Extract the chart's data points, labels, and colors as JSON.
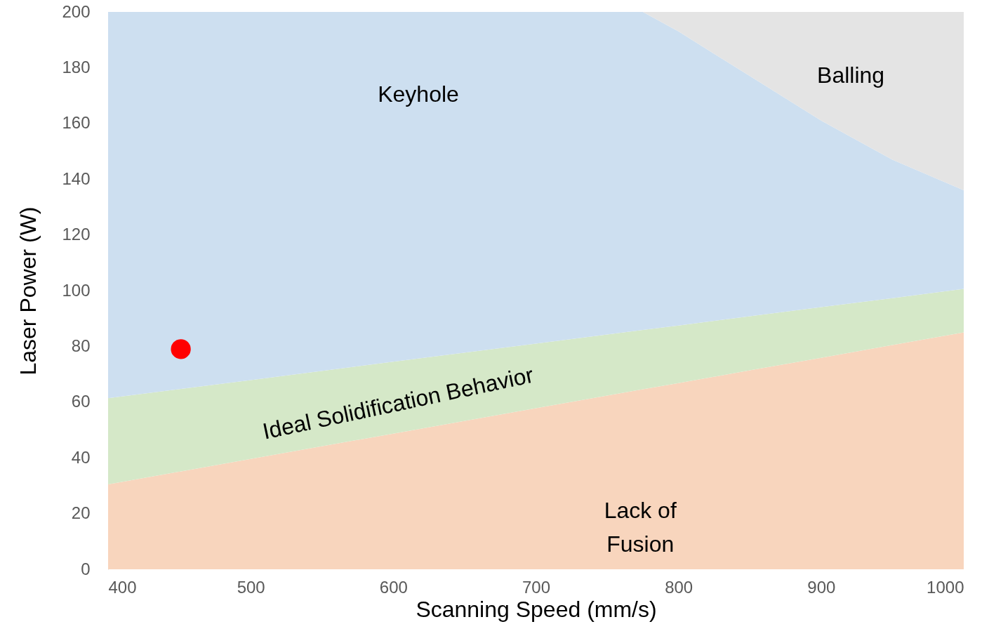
{
  "chart_data": {
    "type": "area",
    "stacked": true,
    "xlabel": "Scanning Speed (mm/s)",
    "ylabel": "Laser Power (W)",
    "x": [
      400,
      500,
      600,
      700,
      775,
      800,
      850,
      900,
      950,
      1000
    ],
    "series": [
      {
        "color": "#f8d5bd",
        "values": [
          30.5,
          39.6,
          48.7,
          57.8,
          64.6,
          66.8,
          71.4,
          75.9,
          80.5,
          85
        ]
      },
      {
        "color": "#d5e8c8",
        "values": [
          30.9,
          28.3,
          25.8,
          23.2,
          21.3,
          20.7,
          19.4,
          18.2,
          16.8,
          15.6
        ]
      },
      {
        "color": "#cddff0",
        "values": [
          138.6,
          132.1,
          125.5,
          119.0,
          114.1,
          105.5,
          86.2,
          66.9,
          49.7,
          35.4
        ]
      },
      {
        "color": "#e4e4e4",
        "values": [
          0,
          0,
          0,
          0,
          0,
          7,
          23,
          39,
          53,
          64
        ]
      },
      {
        "type": "scatter",
        "color": "#ff0000",
        "marker": "circle",
        "x": [
          451
        ],
        "values": [
          79
        ]
      }
    ],
    "annotations": [
      "Keyhole",
      "Balling",
      "Ideal Solidification Behavior",
      "Lack of\nFusion"
    ],
    "xlim": [
      400,
      1000
    ],
    "xticks": [
      400,
      500,
      600,
      700,
      800,
      900,
      1000
    ],
    "ylim": [
      0,
      200
    ],
    "yticks": [
      0,
      20,
      40,
      60,
      80,
      100,
      120,
      140,
      160,
      180,
      200
    ],
    "grid": false
  }
}
